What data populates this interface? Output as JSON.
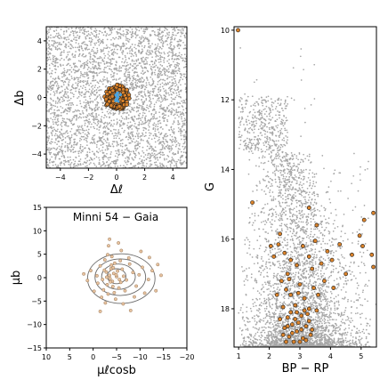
{
  "chart_data": [
    {
      "type": "scatter",
      "panel": "sky",
      "xlabel": "Δℓ",
      "ylabel": "Δb",
      "xlim": [
        -5,
        5
      ],
      "ylim": [
        -5,
        5
      ],
      "xticks": [
        -4,
        -2,
        0,
        2,
        4
      ],
      "yticks": [
        -4,
        -2,
        0,
        2,
        4
      ],
      "xtick_labels": [
        "−4",
        "−2",
        "0",
        "2",
        "4"
      ],
      "ytick_labels": [
        "−4",
        "−2",
        "0",
        "2",
        "4"
      ],
      "field_stars": {
        "description": "gray field points uniformly filling the panel",
        "count_estimate": 3500,
        "x_range": [
          -5,
          5
        ],
        "y_range": [
          -5,
          5
        ]
      },
      "cluster_members": {
        "center": [
          0,
          0
        ],
        "radius": 0.9,
        "count_estimate": 140
      },
      "cluster_core": {
        "center": [
          0,
          0
        ],
        "radius": 0.35
      },
      "colors": {
        "field": "#a6a6a6",
        "member_face": "#d9822b",
        "member_edge": "#1a1a1a",
        "core": "#4aa3df"
      }
    },
    {
      "type": "scatter",
      "panel": "proper_motion",
      "title": "Minni 54  −  Gaia",
      "xlabel": "μℓcosb",
      "ylabel": "μb",
      "xlim": [
        10,
        -20
      ],
      "ylim": [
        -15,
        15
      ],
      "xticks": [
        10,
        5,
        0,
        -5,
        -10,
        -15,
        -20
      ],
      "yticks": [
        -15,
        -10,
        -5,
        0,
        5,
        10,
        15
      ],
      "xtick_labels": [
        "10",
        "5",
        "0",
        "−5",
        "−10",
        "−15",
        "−20"
      ],
      "ytick_labels": [
        "−15",
        "−10",
        "−5",
        "0",
        "5",
        "10",
        "15"
      ],
      "scatter": [
        [
          -3.5,
          0.5
        ],
        [
          -4.1,
          -0.8
        ],
        [
          -2.8,
          1.2
        ],
        [
          -5.0,
          0.2
        ],
        [
          -3.0,
          -1.5
        ],
        [
          -6.2,
          1.8
        ],
        [
          -1.5,
          2.5
        ],
        [
          -4.6,
          3.1
        ],
        [
          -2.2,
          -2.6
        ],
        [
          -7.1,
          -0.5
        ],
        [
          -3.8,
          1.9
        ],
        [
          -0.8,
          0.4
        ],
        [
          -5.5,
          -2.2
        ],
        [
          -4.0,
          4.5
        ],
        [
          -2.5,
          3.8
        ],
        [
          -8.5,
          1.1
        ],
        [
          -6.8,
          -2.8
        ],
        [
          -1.0,
          -1.2
        ],
        [
          -3.2,
          -3.5
        ],
        [
          -9.2,
          -1.8
        ],
        [
          -5.8,
          3.6
        ],
        [
          -3.6,
          -0.2
        ],
        [
          -4.4,
          0.9
        ],
        [
          -2.9,
          0.1
        ],
        [
          0.5,
          1.5
        ],
        [
          1.2,
          -0.6
        ],
        [
          -10.5,
          2.2
        ],
        [
          -11.8,
          -0.4
        ],
        [
          -6.0,
          5.8
        ],
        [
          -3.3,
          6.8
        ],
        [
          -4.8,
          -4.6
        ],
        [
          -7.6,
          4.2
        ],
        [
          -12.6,
          1.5
        ],
        [
          -13.4,
          -2.8
        ],
        [
          -8.8,
          -4.1
        ],
        [
          -1.8,
          -4.2
        ],
        [
          2.0,
          0.8
        ],
        [
          -5.2,
          1.4
        ],
        [
          -4.2,
          -1.9
        ],
        [
          -6.5,
          0.3
        ],
        [
          -3.9,
          2.7
        ],
        [
          -2.0,
          -0.4
        ],
        [
          -5.9,
          -1.0
        ],
        [
          -7.8,
          2.9
        ],
        [
          -9.8,
          0.6
        ],
        [
          -4.5,
          -3.2
        ],
        [
          -3.1,
          4.9
        ],
        [
          -0.2,
          -2.9
        ],
        [
          -11.0,
          -3.3
        ],
        [
          -14.5,
          0.5
        ],
        [
          -2.6,
          -5.4
        ],
        [
          -6.4,
          -5.6
        ],
        [
          -12.0,
          4.3
        ],
        [
          -5.4,
          7.4
        ],
        [
          -3.5,
          8.2
        ],
        [
          -1.5,
          -7.2
        ],
        [
          -8.0,
          -7.0
        ],
        [
          -10.2,
          5.6
        ],
        [
          -13.8,
          2.8
        ],
        [
          -4.3,
          2.1
        ],
        [
          -3.7,
          -0.9
        ],
        [
          -4.9,
          0.6
        ],
        [
          -2.4,
          1.6
        ],
        [
          -5.6,
          -0.4
        ]
      ],
      "contours": [
        {
          "cx": -5.0,
          "cy": 0.3,
          "rx": 2.0,
          "ry": 1.6
        },
        {
          "cx": -5.4,
          "cy": 0.2,
          "rx": 3.6,
          "ry": 2.7
        },
        {
          "cx": -5.8,
          "cy": 0.1,
          "rx": 5.4,
          "ry": 3.9
        },
        {
          "cx": -6.0,
          "cy": -0.2,
          "rx": 7.2,
          "ry": 5.3
        }
      ],
      "colors": {
        "point_face": "#e8c3a0",
        "point_edge": "#9a7a5a",
        "contour": "#6a6a6a"
      }
    },
    {
      "type": "scatter",
      "panel": "cmd",
      "xlabel": "BP − RP",
      "ylabel": "G",
      "xlim": [
        0.85,
        5.5
      ],
      "ylim": [
        19.1,
        9.9
      ],
      "y_inverted": true,
      "xticks": [
        1,
        2,
        3,
        4,
        5
      ],
      "yticks": [
        10,
        12,
        14,
        16,
        18
      ],
      "xtick_labels": [
        "1",
        "2",
        "3",
        "4",
        "5"
      ],
      "ytick_labels": [
        "10",
        "12",
        "14",
        "16",
        "18"
      ],
      "field_stars": {
        "description": "gray field population, broad upper envelope from BP−RP≈1.2 at G=14 to ≈5 at G=16; dense at faint magnitudes",
        "count_estimate": 4500
      },
      "members": [
        [
          0.98,
          10.0
        ],
        [
          1.45,
          14.95
        ],
        [
          5.4,
          15.25
        ],
        [
          5.1,
          15.45
        ],
        [
          3.3,
          15.1
        ],
        [
          2.05,
          16.2
        ],
        [
          2.15,
          16.5
        ],
        [
          2.3,
          16.15
        ],
        [
          2.5,
          16.4
        ],
        [
          2.7,
          16.6
        ],
        [
          2.6,
          17.0
        ],
        [
          2.9,
          16.75
        ],
        [
          3.1,
          16.2
        ],
        [
          3.3,
          16.5
        ],
        [
          3.5,
          16.05
        ],
        [
          3.7,
          16.7
        ],
        [
          3.9,
          16.35
        ],
        [
          4.05,
          16.6
        ],
        [
          4.3,
          16.15
        ],
        [
          4.5,
          17.0
        ],
        [
          4.7,
          16.45
        ],
        [
          5.05,
          16.2
        ],
        [
          5.35,
          16.45
        ],
        [
          5.4,
          16.8
        ],
        [
          3.55,
          15.6
        ],
        [
          2.35,
          15.85
        ],
        [
          4.95,
          15.9
        ],
        [
          2.4,
          17.2
        ],
        [
          2.55,
          17.45
        ],
        [
          2.7,
          17.6
        ],
        [
          2.85,
          17.9
        ],
        [
          3.0,
          17.3
        ],
        [
          3.15,
          17.7
        ],
        [
          3.3,
          18.0
        ],
        [
          3.45,
          17.4
        ],
        [
          2.45,
          17.95
        ],
        [
          2.6,
          18.25
        ],
        [
          2.75,
          18.45
        ],
        [
          2.9,
          18.65
        ],
        [
          3.05,
          18.2
        ],
        [
          3.2,
          18.5
        ],
        [
          3.35,
          18.75
        ],
        [
          2.5,
          18.55
        ],
        [
          2.65,
          18.8
        ],
        [
          2.8,
          18.95
        ],
        [
          2.95,
          18.4
        ],
        [
          3.1,
          18.85
        ],
        [
          3.25,
          18.15
        ],
        [
          3.4,
          18.6
        ],
        [
          2.35,
          18.3
        ],
        [
          2.55,
          18.95
        ],
        [
          2.7,
          18.1
        ],
        [
          2.85,
          18.3
        ],
        [
          3.0,
          18.95
        ],
        [
          3.15,
          18.05
        ],
        [
          3.3,
          18.35
        ],
        [
          2.45,
          18.75
        ],
        [
          2.6,
          18.5
        ],
        [
          2.75,
          18.7
        ],
        [
          2.9,
          18.1
        ],
        [
          3.05,
          18.6
        ],
        [
          3.2,
          18.9
        ],
        [
          2.95,
          17.55
        ],
        [
          3.55,
          18.05
        ],
        [
          3.6,
          17.6
        ],
        [
          2.25,
          17.6
        ],
        [
          3.8,
          17.2
        ],
        [
          4.1,
          17.4
        ],
        [
          2.65,
          17.15
        ],
        [
          3.4,
          16.85
        ]
      ],
      "colors": {
        "field": "#a6a6a6",
        "member_face": "#d9822b",
        "member_edge": "#1a1a1a"
      }
    }
  ]
}
